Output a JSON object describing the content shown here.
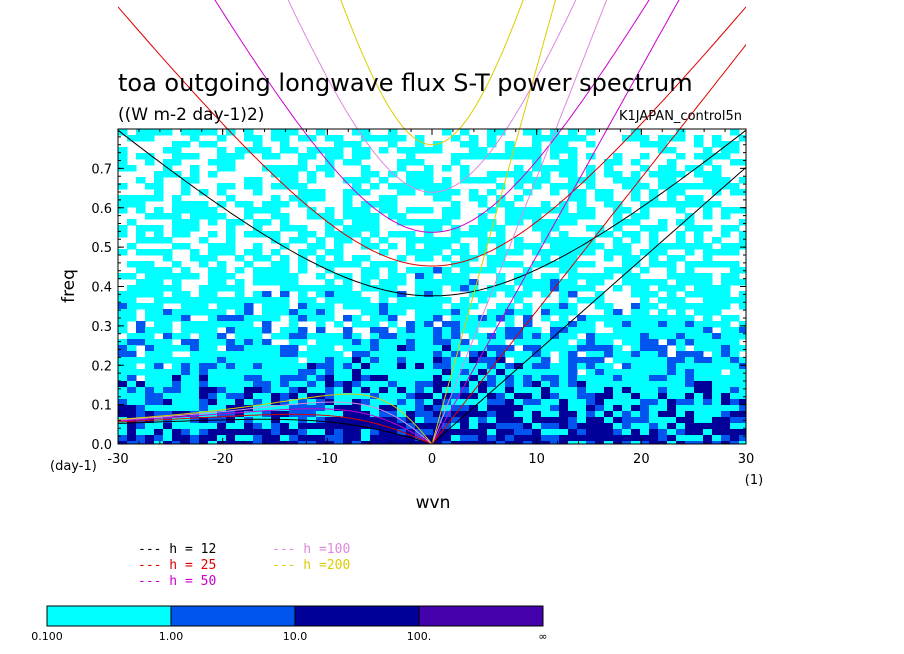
{
  "chart_data": {
    "type": "heatmap",
    "title": "toa outgoing longwave flux S-T power spectrum",
    "subtitle": "((W m-2 day-1)2)",
    "run_label": "K1JAPAN_control5n",
    "xlabel": "wvn",
    "ylabel": "freq",
    "x_unit": "(1)",
    "y_unit": "(day-1)",
    "xlim": [
      -30,
      30
    ],
    "ylim": [
      0,
      0.8
    ],
    "xticks": [
      "-30",
      "-20",
      "-10",
      "0",
      "10",
      "20",
      "30"
    ],
    "yticks": [
      "0.0",
      "0.1",
      "0.2",
      "0.3",
      "0.4",
      "0.5",
      "0.6",
      "0.7"
    ],
    "levels": [
      "0.100",
      "1.00",
      "10.0",
      "100.",
      "∞"
    ],
    "level_colors": [
      "#00ffff",
      "#0055ee",
      "#000099",
      "#4400aa"
    ],
    "dispersion_curves": [
      {
        "label": "h = 12",
        "h": 12,
        "color": "#000000"
      },
      {
        "label": "h = 25",
        "h": 25,
        "color": "#dd0000"
      },
      {
        "label": "h = 50",
        "h": 50,
        "color": "#cc00cc"
      },
      {
        "label": "h =100",
        "h": 100,
        "color": "#dd88dd"
      },
      {
        "label": "h =200",
        "h": 200,
        "color": "#ddcc00"
      }
    ]
  }
}
